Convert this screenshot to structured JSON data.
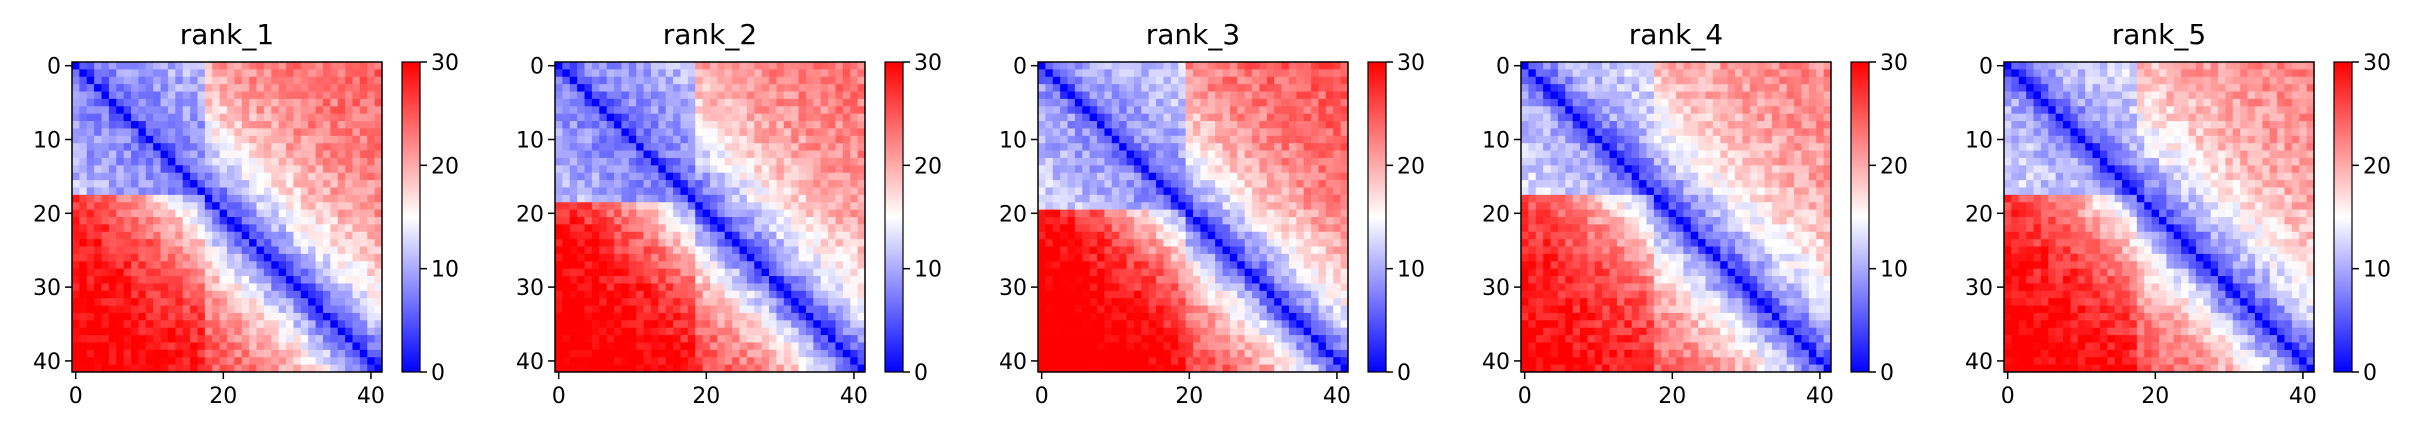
{
  "chart_data": [
    {
      "type": "heatmap",
      "title": "rank_1",
      "xticks": [
        0,
        20,
        40
      ],
      "yticks": [
        0,
        10,
        20,
        30,
        40
      ],
      "size": 42,
      "clim": [
        0,
        30
      ],
      "colorbar_ticks": [
        0,
        10,
        20,
        30
      ],
      "colormap": [
        "#0000ff",
        "#ffffff",
        "#ff0000"
      ],
      "profile": {
        "upper_far": 22,
        "lower_far": 26,
        "domain_boundary": 18,
        "domain_level": 7,
        "noise": 2.5
      }
    },
    {
      "type": "heatmap",
      "title": "rank_2",
      "xticks": [
        0,
        20,
        40
      ],
      "yticks": [
        0,
        10,
        20,
        30,
        40
      ],
      "size": 42,
      "clim": [
        0,
        30
      ],
      "colorbar_ticks": [
        0,
        10,
        20,
        30
      ],
      "colormap": [
        "#0000ff",
        "#ffffff",
        "#ff0000"
      ],
      "profile": {
        "upper_far": 21,
        "lower_far": 27,
        "domain_boundary": 19,
        "domain_level": 7,
        "noise": 2.5
      }
    },
    {
      "type": "heatmap",
      "title": "rank_3",
      "xticks": [
        0,
        20,
        40
      ],
      "yticks": [
        0,
        10,
        20,
        30,
        40
      ],
      "size": 42,
      "clim": [
        0,
        30
      ],
      "colorbar_ticks": [
        0,
        10,
        20,
        30
      ],
      "colormap": [
        "#0000ff",
        "#ffffff",
        "#ff0000"
      ],
      "profile": {
        "upper_far": 23,
        "lower_far": 28,
        "domain_boundary": 20,
        "domain_level": 8,
        "noise": 2.5
      }
    },
    {
      "type": "heatmap",
      "title": "rank_4",
      "xticks": [
        0,
        20,
        40
      ],
      "yticks": [
        0,
        10,
        20,
        30,
        40
      ],
      "size": 42,
      "clim": [
        0,
        30
      ],
      "colorbar_ticks": [
        0,
        10,
        20,
        30
      ],
      "colormap": [
        "#0000ff",
        "#ffffff",
        "#ff0000"
      ],
      "profile": {
        "upper_far": 20,
        "lower_far": 25,
        "domain_boundary": 18,
        "domain_level": 9,
        "noise": 2.5
      }
    },
    {
      "type": "heatmap",
      "title": "rank_5",
      "xticks": [
        0,
        20,
        40
      ],
      "yticks": [
        0,
        10,
        20,
        30,
        40
      ],
      "size": 42,
      "clim": [
        0,
        30
      ],
      "colorbar_ticks": [
        0,
        10,
        20,
        30
      ],
      "colormap": [
        "#0000ff",
        "#ffffff",
        "#ff0000"
      ],
      "profile": {
        "upper_far": 20,
        "lower_far": 26,
        "domain_boundary": 18,
        "domain_level": 9,
        "noise": 2.5
      }
    }
  ]
}
